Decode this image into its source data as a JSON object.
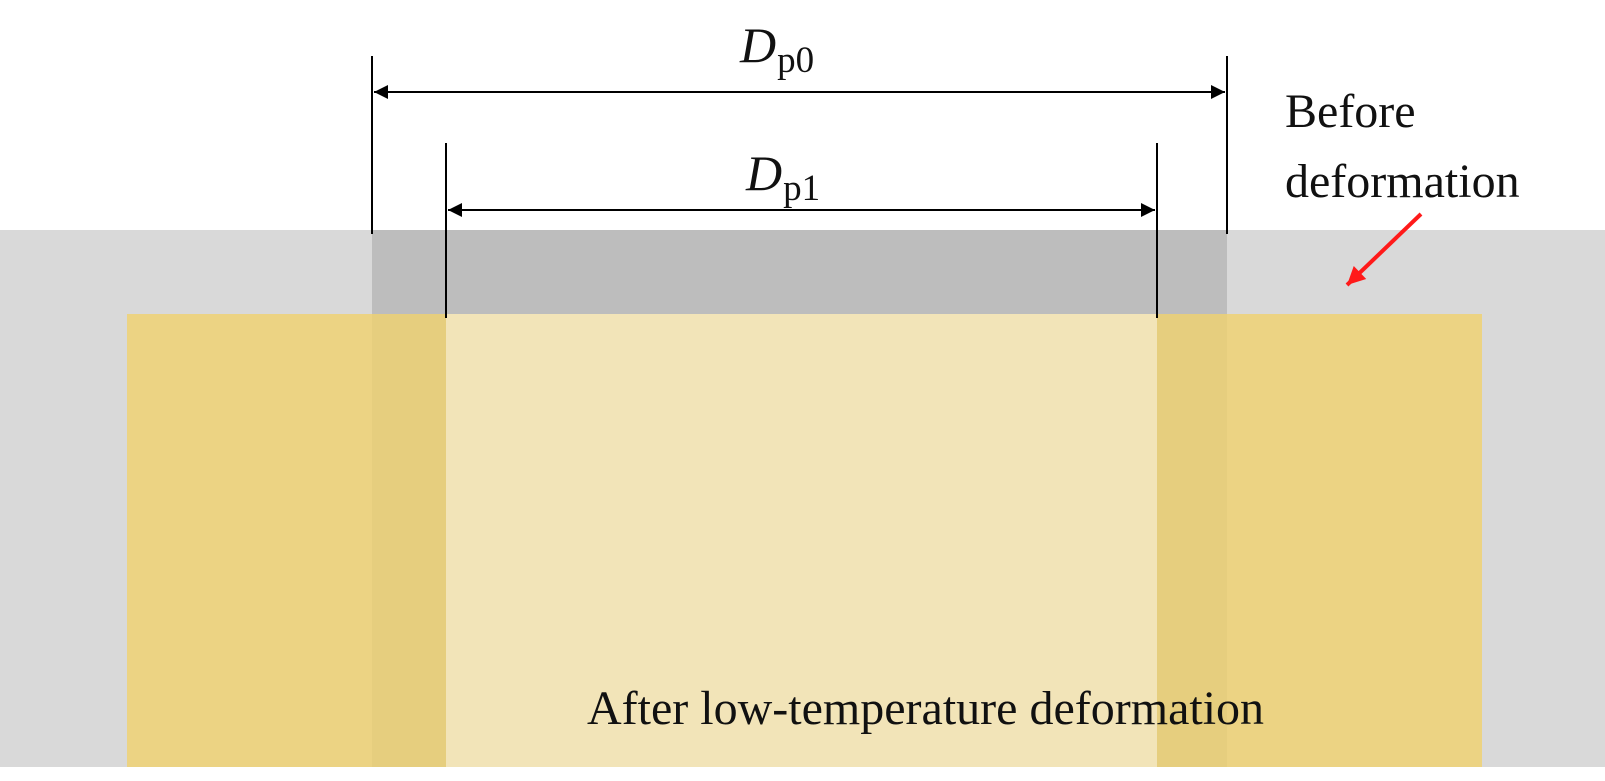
{
  "diagram": {
    "dimensions": {
      "outer": {
        "symbol": "D",
        "subscript": "p0"
      },
      "inner": {
        "symbol": "D",
        "subscript": "p1"
      }
    },
    "labels": {
      "before_line1": "Before",
      "before_line2": "deformation",
      "after": "After low-temperature deformation"
    },
    "colors": {
      "before_shape": "#d9d9d9",
      "overlap_region": "#bdbdbd",
      "after_shape": "#ecd383",
      "inner_hole": "#f2e4b8",
      "arrow_red": "#ff1a1a",
      "line": "#000000"
    }
  }
}
